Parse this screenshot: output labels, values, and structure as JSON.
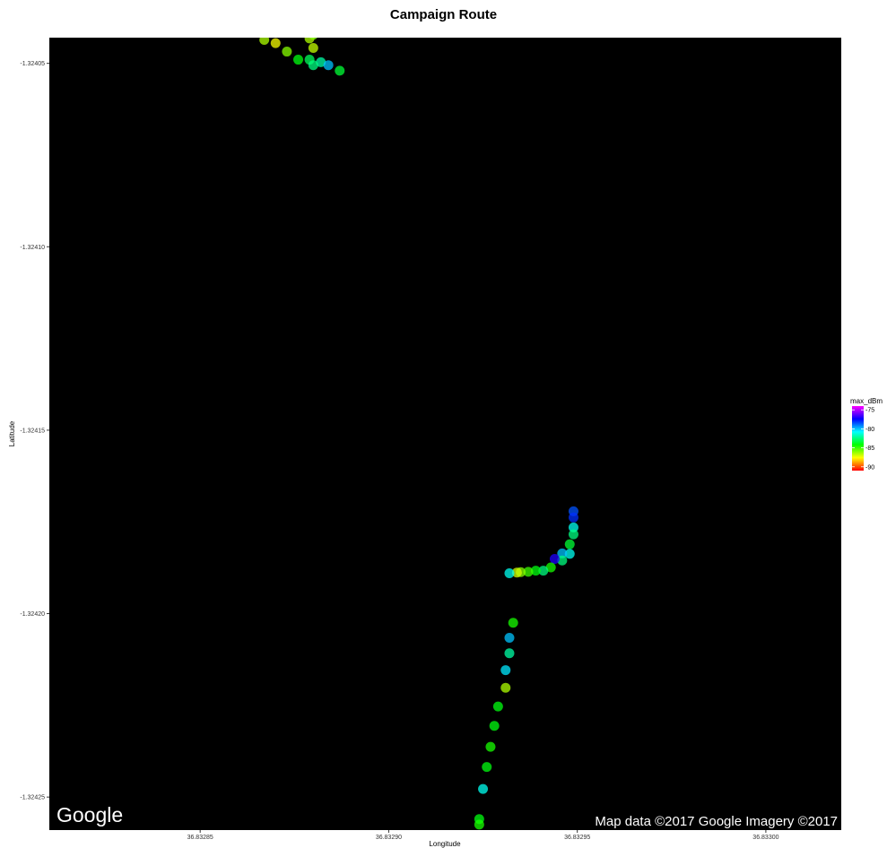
{
  "chart_data": {
    "type": "scatter",
    "title": "Campaign Route",
    "xlabel": "Longitude",
    "ylabel": "Latitude",
    "xlim": [
      36.83281,
      36.83302
    ],
    "ylim": [
      -1.324259,
      -1.324043
    ],
    "x_ticks": [
      "36.83285",
      "36.83290",
      "36.83295",
      "36.83300"
    ],
    "x_tick_values": [
      36.83285,
      36.8329,
      36.83295,
      36.833
    ],
    "y_ticks": [
      "-1.32405",
      "-1.32410",
      "-1.32415",
      "-1.32420",
      "-1.32425"
    ],
    "y_tick_values": [
      -1.32405,
      -1.3241,
      -1.32415,
      -1.3242,
      -1.32425
    ],
    "background": "#000000",
    "grid": false,
    "legend": {
      "title": "max_dBm",
      "position": "right",
      "ticks": [
        "-75",
        "-80",
        "-85",
        "-90"
      ],
      "tick_values": [
        -75,
        -80,
        -85,
        -90
      ],
      "range": [
        -91,
        -74
      ],
      "colors": [
        "#ff0000",
        "#ffff00",
        "#00ff00",
        "#00ffff",
        "#0000ff",
        "#ff00ff"
      ]
    },
    "map_logo": "Google",
    "attribution": "Map data ©2017 Google  Imagery ©2017",
    "points": [
      {
        "lon": 36.832867,
        "lat": -1.3240436,
        "dBm": -86.5
      },
      {
        "lon": 36.83287,
        "lat": -1.3240445,
        "dBm": -87.5
      },
      {
        "lon": 36.832873,
        "lat": -1.3240468,
        "dBm": -86.0
      },
      {
        "lon": 36.832876,
        "lat": -1.324049,
        "dBm": -84.0
      },
      {
        "lon": 36.832879,
        "lat": -1.324049,
        "dBm": -83.0
      },
      {
        "lon": 36.832882,
        "lat": -1.3240497,
        "dBm": -82.0
      },
      {
        "lon": 36.832884,
        "lat": -1.3240505,
        "dBm": -80.0
      },
      {
        "lon": 36.832887,
        "lat": -1.324052,
        "dBm": -83.5
      },
      {
        "lon": 36.83288,
        "lat": -1.3240505,
        "dBm": -82.5
      },
      {
        "lon": 36.832879,
        "lat": -1.3240432,
        "dBm": -86.5
      },
      {
        "lon": 36.83288,
        "lat": -1.3240422,
        "dBm": -86.0
      },
      {
        "lon": 36.83288,
        "lat": -1.3240458,
        "dBm": -86.8
      },
      {
        "lon": 36.832949,
        "lat": -1.3241721,
        "dBm": -78.5
      },
      {
        "lon": 36.832949,
        "lat": -1.3241738,
        "dBm": -78.0
      },
      {
        "lon": 36.832949,
        "lat": -1.3241765,
        "dBm": -81.0
      },
      {
        "lon": 36.832949,
        "lat": -1.3241784,
        "dBm": -82.5
      },
      {
        "lon": 36.832948,
        "lat": -1.3241811,
        "dBm": -83.5
      },
      {
        "lon": 36.832948,
        "lat": -1.3241837,
        "dBm": -81.0
      },
      {
        "lon": 36.832946,
        "lat": -1.3241836,
        "dBm": -80.0
      },
      {
        "lon": 36.832946,
        "lat": -1.3241855,
        "dBm": -82.5
      },
      {
        "lon": 36.832944,
        "lat": -1.3241851,
        "dBm": -77.0
      },
      {
        "lon": 36.832943,
        "lat": -1.3241874,
        "dBm": -84.5
      },
      {
        "lon": 36.832941,
        "lat": -1.3241883,
        "dBm": -82.5
      },
      {
        "lon": 36.832939,
        "lat": -1.3241883,
        "dBm": -84.0
      },
      {
        "lon": 36.832937,
        "lat": -1.3241886,
        "dBm": -85.0
      },
      {
        "lon": 36.832935,
        "lat": -1.3241887,
        "dBm": -86.0
      },
      {
        "lon": 36.832934,
        "lat": -1.3241888,
        "dBm": -87.0
      },
      {
        "lon": 36.832932,
        "lat": -1.324189,
        "dBm": -81.0
      },
      {
        "lon": 36.832933,
        "lat": -1.3242025,
        "dBm": -84.5
      },
      {
        "lon": 36.832932,
        "lat": -1.3242066,
        "dBm": -80.0
      },
      {
        "lon": 36.832932,
        "lat": -1.3242108,
        "dBm": -82.0
      },
      {
        "lon": 36.832931,
        "lat": -1.3242154,
        "dBm": -80.5
      },
      {
        "lon": 36.832931,
        "lat": -1.3242202,
        "dBm": -86.5
      },
      {
        "lon": 36.832929,
        "lat": -1.3242253,
        "dBm": -84.0
      },
      {
        "lon": 36.832928,
        "lat": -1.3242306,
        "dBm": -84.0
      },
      {
        "lon": 36.832927,
        "lat": -1.3242363,
        "dBm": -84.5
      },
      {
        "lon": 36.832926,
        "lat": -1.3242418,
        "dBm": -84.0
      },
      {
        "lon": 36.832925,
        "lat": -1.3242478,
        "dBm": -81.0
      },
      {
        "lon": 36.832924,
        "lat": -1.324256,
        "dBm": -84.0
      },
      {
        "lon": 36.832924,
        "lat": -1.3242575,
        "dBm": -84.5
      }
    ]
  }
}
